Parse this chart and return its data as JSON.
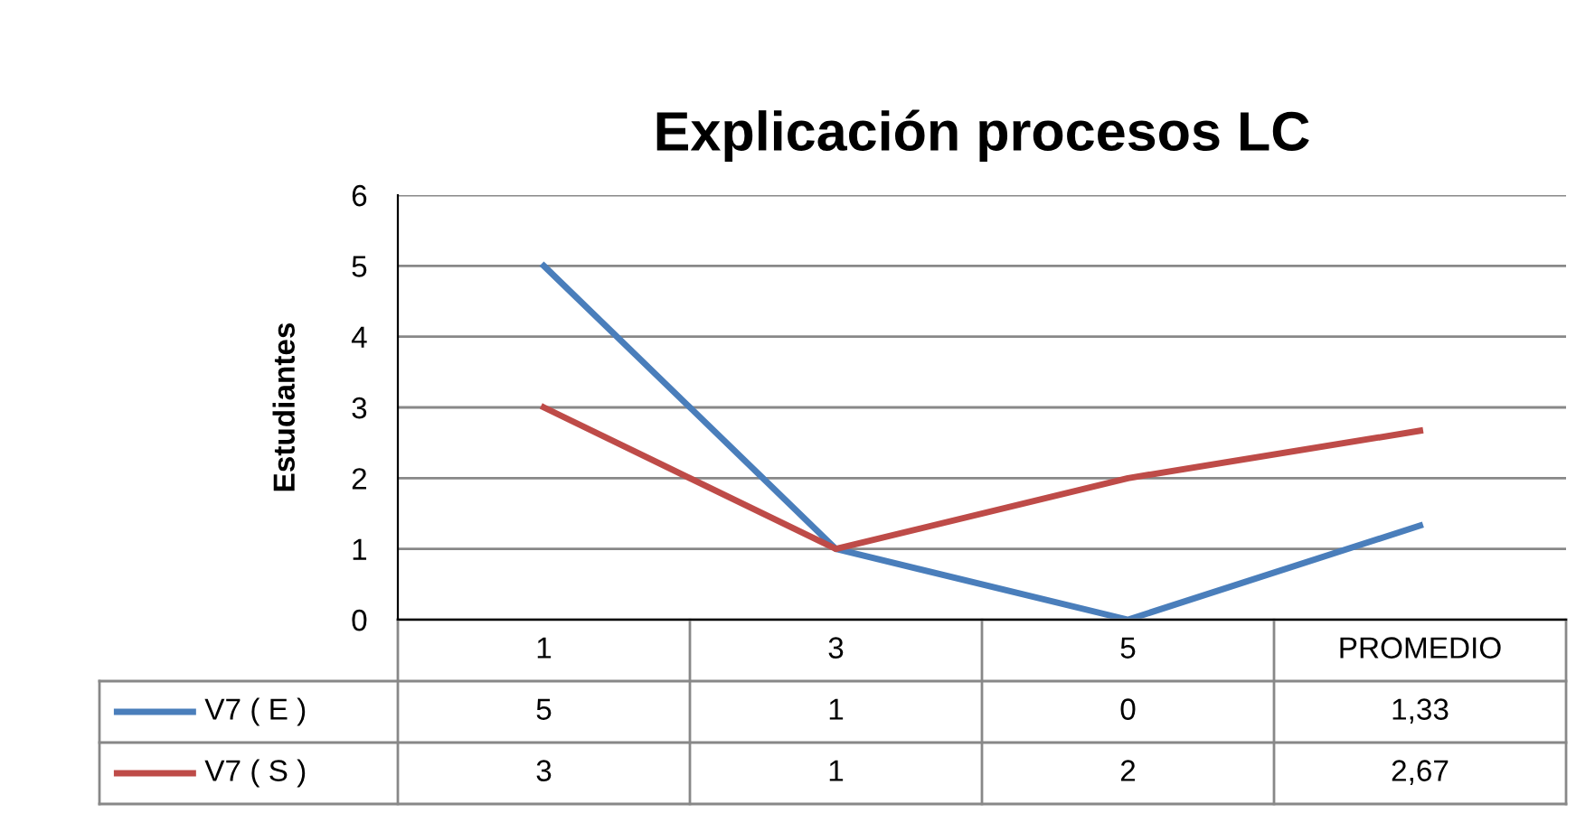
{
  "chart_data": {
    "type": "line",
    "title": "Explicación procesos LC",
    "ylabel": "Estudiantes",
    "categories": [
      "1",
      "3",
      "5",
      "PROMEDIO"
    ],
    "series": [
      {
        "name": "V7 ( E )",
        "color": "#4a7ebb",
        "values": [
          5,
          1,
          0,
          1.33
        ],
        "value_labels": [
          "5",
          "1",
          "0",
          "1,33"
        ]
      },
      {
        "name": "V7 ( S )",
        "color": "#be4b48",
        "values": [
          3,
          1,
          2,
          2.67
        ],
        "value_labels": [
          "3",
          "1",
          "2",
          "2,67"
        ]
      }
    ],
    "ylim": [
      0,
      6
    ],
    "yticks": [
      0,
      1,
      2,
      3,
      4,
      5,
      6
    ],
    "grid": "y",
    "legend": "bottom",
    "marker": "none",
    "line_style": "solid"
  }
}
